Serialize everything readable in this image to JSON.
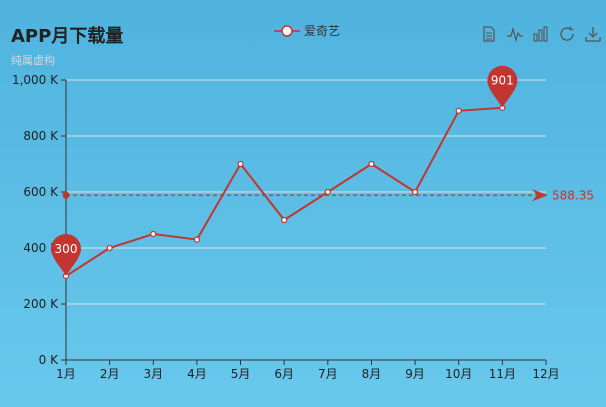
{
  "title": "APP月下载量",
  "subtitle": "纯属虚构",
  "legend": {
    "series_name": "爱奇艺"
  },
  "toolbox": {
    "icons": [
      "data-view-icon",
      "line-chart-icon",
      "bar-chart-icon",
      "restore-icon",
      "download-icon"
    ]
  },
  "colors": {
    "series": "#c23531",
    "background": "#5fc0e8"
  },
  "chart_data": {
    "type": "line",
    "title": "APP月下载量",
    "subtitle": "纯属虚构",
    "categories": [
      "1月",
      "2月",
      "3月",
      "4月",
      "5月",
      "6月",
      "7月",
      "8月",
      "9月",
      "10月",
      "11月",
      "12月"
    ],
    "series": [
      {
        "name": "爱奇艺",
        "values": [
          300,
          400,
          450,
          430,
          700,
          500,
          600,
          700,
          600,
          890,
          901,
          null
        ]
      }
    ],
    "ylim": [
      0,
      1000
    ],
    "yticks": [
      0,
      200,
      400,
      600,
      800,
      1000
    ],
    "ytick_labels": [
      "0 K",
      "200 K",
      "400 K",
      "600 K",
      "800 K",
      "1,000 K"
    ],
    "mark_points": [
      {
        "label": "300",
        "category": "1月",
        "value": 300
      },
      {
        "label": "901",
        "category": "11月",
        "value": 901
      }
    ],
    "mark_line": {
      "label": "588.35",
      "value": 588.35
    },
    "grid": "horizontal",
    "legend_position": "top-center"
  }
}
